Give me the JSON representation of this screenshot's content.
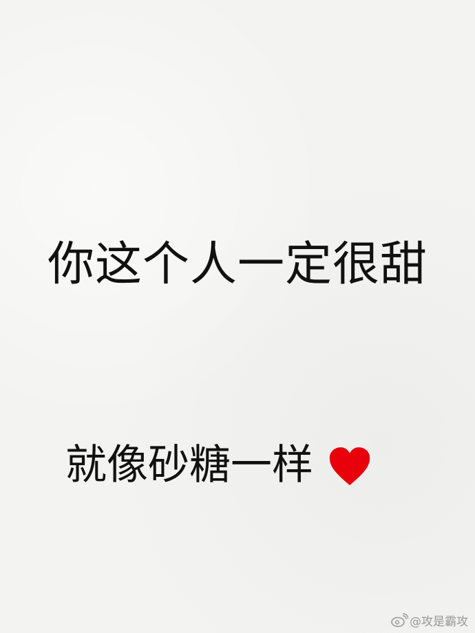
{
  "lines": {
    "first": "你这个人一定很甜",
    "second": "就像砂糖一样"
  },
  "heart": {
    "icon": "heart-icon",
    "color": "#e8000b"
  },
  "watermark": {
    "text": "@攻是霸攻",
    "logo": "weibo-logo-icon"
  }
}
